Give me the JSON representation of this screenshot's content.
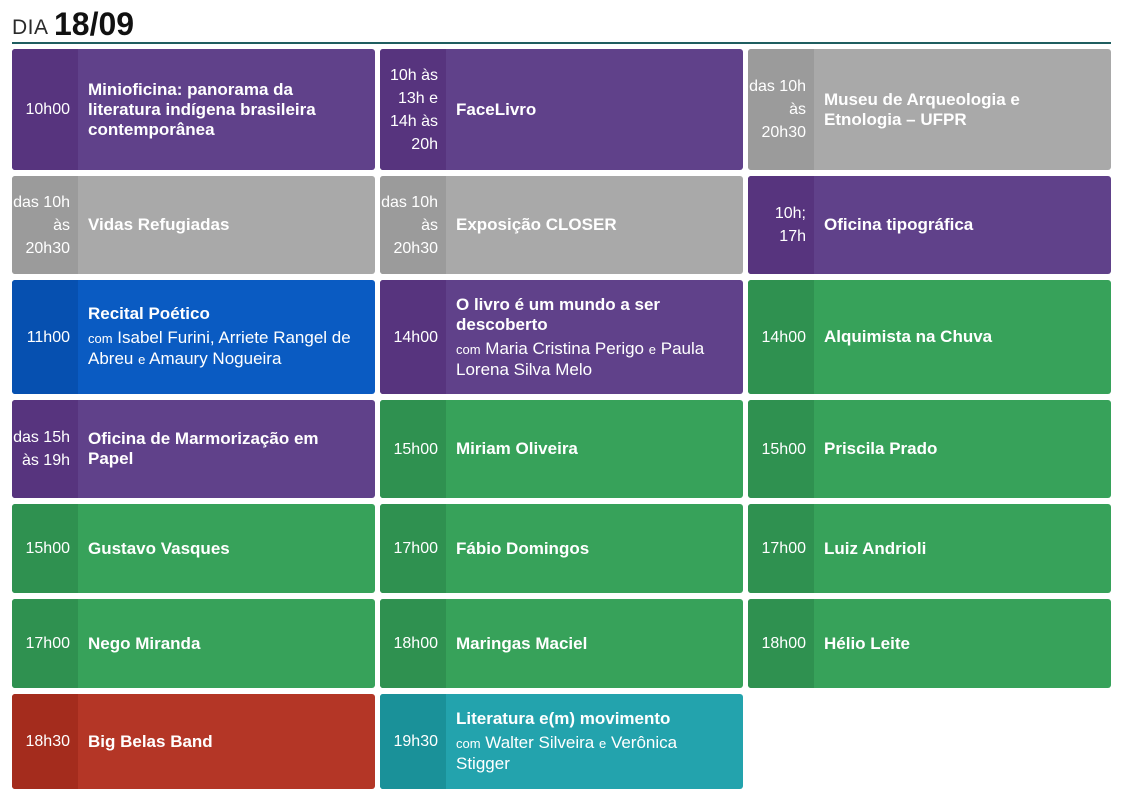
{
  "header": {
    "prefix": "DIA",
    "date": "18/09"
  },
  "cards": [
    {
      "time": "10h00",
      "title": "Minioficina: panorama da literatura indígena brasileira contemporânea"
    },
    {
      "time": "10h às 13h e 14h às 20h",
      "title": "FaceLivro"
    },
    {
      "time": "das 10h às 20h30",
      "title": "Museu de Arqueologia e Etnologia – UFPR"
    },
    {
      "time": "das 10h às 20h30",
      "title": "Vidas Refugiadas"
    },
    {
      "time": "das 10h às 20h30",
      "title": "Exposição CLOSER"
    },
    {
      "time": "10h; 17h",
      "title": "Oficina tipográfica"
    },
    {
      "time": "11h00",
      "title": "Recital Poético",
      "sub_prefix": "com",
      "sub_text_a": "Isabel Furini, Arriete Rangel de Abreu",
      "sub_join": "e",
      "sub_text_b": "Amaury Nogueira"
    },
    {
      "time": "14h00",
      "title": "O livro é um mundo a ser descoberto",
      "sub_prefix": "com",
      "sub_text_a": "Maria Cristina Perigo",
      "sub_join": "e",
      "sub_text_b": "Paula Lorena Silva Melo"
    },
    {
      "time": "14h00",
      "title": "Alquimista na Chuva"
    },
    {
      "time": "das 15h às 19h",
      "title": "Oficina de Marmorização em Papel"
    },
    {
      "time": "15h00",
      "title": "Miriam Oliveira"
    },
    {
      "time": "15h00",
      "title": "Priscila Prado"
    },
    {
      "time": "15h00",
      "title": "Gustavo Vasques"
    },
    {
      "time": "17h00",
      "title": "Fábio Domingos"
    },
    {
      "time": "17h00",
      "title": "Luiz Andrioli"
    },
    {
      "time": "17h00",
      "title": "Nego Miranda"
    },
    {
      "time": "18h00",
      "title": "Maringas Maciel"
    },
    {
      "time": "18h00",
      "title": "Hélio Leite"
    },
    {
      "time": "18h30",
      "title": "Big Belas Band"
    },
    {
      "time": "19h30",
      "title": "Literatura e(m) movimento",
      "sub_prefix": "com",
      "sub_text_a": "Walter Silveira",
      "sub_join": "e",
      "sub_text_b": "Verônica Stigger"
    }
  ],
  "colors": {
    "purple": "#60418a",
    "grey": "#a9a9a9",
    "green": "#37a25a",
    "blue": "#0a5bc2",
    "red": "#b43626",
    "teal": "#23a3ad",
    "header_rule": "#1f5e60"
  }
}
